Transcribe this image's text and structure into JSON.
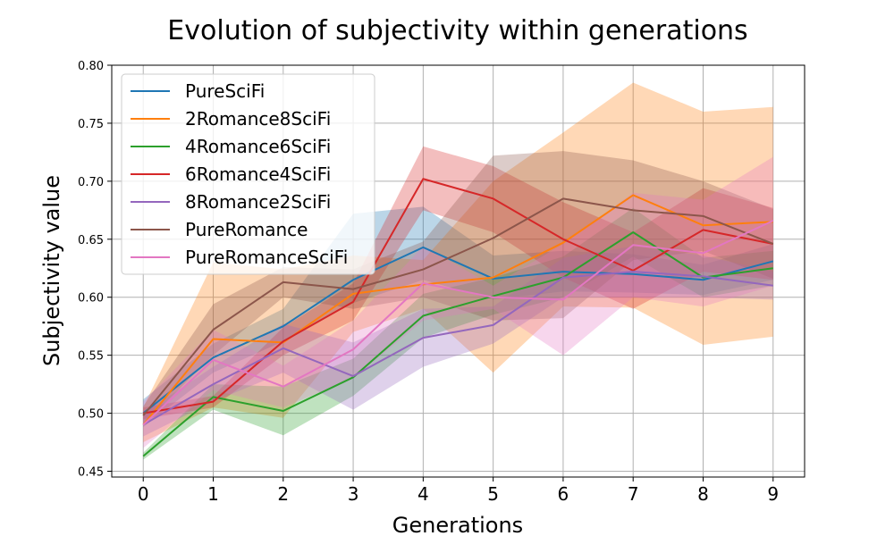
{
  "chart_data": {
    "type": "line",
    "title": "Evolution of subjectivity within generations",
    "xlabel": "Generations",
    "ylabel": "Subjectivity value",
    "x": [
      0,
      1,
      2,
      3,
      4,
      5,
      6,
      7,
      8,
      9
    ],
    "xlim": [
      -0.45,
      9.45
    ],
    "ylim": [
      0.445,
      0.8
    ],
    "xticks": [
      "0",
      "1",
      "2",
      "3",
      "4",
      "5",
      "6",
      "7",
      "8",
      "9"
    ],
    "yticks": [
      "0.45",
      "0.50",
      "0.55",
      "0.60",
      "0.65",
      "0.70",
      "0.75",
      "0.80"
    ],
    "grid": true,
    "legend_position": "upper-left",
    "series": [
      {
        "name": "PureSciFi",
        "color": "#1f77b4",
        "values": [
          0.5,
          0.548,
          0.575,
          0.615,
          0.643,
          0.616,
          0.622,
          0.62,
          0.615,
          0.631
        ],
        "lower": [
          0.488,
          0.535,
          0.562,
          0.595,
          0.615,
          0.598,
          0.605,
          0.604,
          0.602,
          0.615
        ],
        "upper": [
          0.512,
          0.56,
          0.59,
          0.672,
          0.678,
          0.636,
          0.64,
          0.637,
          0.628,
          0.646
        ]
      },
      {
        "name": "2Romance8SciFi",
        "color": "#ff7f0e",
        "values": [
          0.49,
          0.564,
          0.561,
          0.603,
          0.611,
          0.617,
          0.647,
          0.688,
          0.662,
          0.665
        ],
        "lower": [
          0.475,
          0.505,
          0.496,
          0.57,
          0.59,
          0.535,
          0.592,
          0.591,
          0.559,
          0.566
        ],
        "upper": [
          0.505,
          0.63,
          0.624,
          0.636,
          0.632,
          0.7,
          0.742,
          0.785,
          0.76,
          0.764
        ]
      },
      {
        "name": "4Romance6SciFi",
        "color": "#2ca02c",
        "values": [
          0.463,
          0.514,
          0.502,
          0.531,
          0.584,
          0.601,
          0.617,
          0.656,
          0.617,
          0.625
        ],
        "lower": [
          0.46,
          0.503,
          0.481,
          0.515,
          0.565,
          0.585,
          0.6,
          0.635,
          0.6,
          0.61
        ],
        "upper": [
          0.466,
          0.525,
          0.523,
          0.547,
          0.603,
          0.617,
          0.635,
          0.677,
          0.634,
          0.64
        ]
      },
      {
        "name": "6Romance4SciFi",
        "color": "#d62728",
        "values": [
          0.5,
          0.51,
          0.562,
          0.596,
          0.702,
          0.685,
          0.65,
          0.623,
          0.658,
          0.646
        ],
        "lower": [
          0.495,
          0.505,
          0.55,
          0.58,
          0.675,
          0.656,
          0.617,
          0.59,
          0.622,
          0.615
        ],
        "upper": [
          0.505,
          0.515,
          0.574,
          0.612,
          0.73,
          0.713,
          0.682,
          0.656,
          0.694,
          0.677
        ]
      },
      {
        "name": "8Romance2SciFi",
        "color": "#9467bd",
        "values": [
          0.49,
          0.525,
          0.556,
          0.532,
          0.565,
          0.576,
          0.617,
          0.622,
          0.618,
          0.61
        ],
        "lower": [
          0.48,
          0.51,
          0.535,
          0.503,
          0.54,
          0.56,
          0.6,
          0.6,
          0.6,
          0.598
        ],
        "upper": [
          0.5,
          0.54,
          0.577,
          0.561,
          0.59,
          0.592,
          0.634,
          0.644,
          0.636,
          0.622
        ]
      },
      {
        "name": "PureRomance",
        "color": "#8c564b",
        "values": [
          0.498,
          0.572,
          0.613,
          0.607,
          0.624,
          0.651,
          0.685,
          0.675,
          0.67,
          0.646
        ],
        "lower": [
          0.49,
          0.55,
          0.6,
          0.59,
          0.6,
          0.58,
          0.582,
          0.632,
          0.64,
          0.616
        ],
        "upper": [
          0.506,
          0.594,
          0.626,
          0.624,
          0.648,
          0.722,
          0.726,
          0.718,
          0.7,
          0.676
        ]
      },
      {
        "name": "PureRomanceSciFi",
        "color": "#e377c2",
        "values": [
          0.49,
          0.546,
          0.523,
          0.555,
          0.612,
          0.6,
          0.598,
          0.645,
          0.638,
          0.666
        ],
        "lower": [
          0.47,
          0.52,
          0.505,
          0.53,
          0.58,
          0.59,
          0.55,
          0.6,
          0.592,
          0.61
        ],
        "upper": [
          0.51,
          0.572,
          0.541,
          0.58,
          0.644,
          0.61,
          0.646,
          0.69,
          0.684,
          0.721
        ]
      }
    ]
  }
}
